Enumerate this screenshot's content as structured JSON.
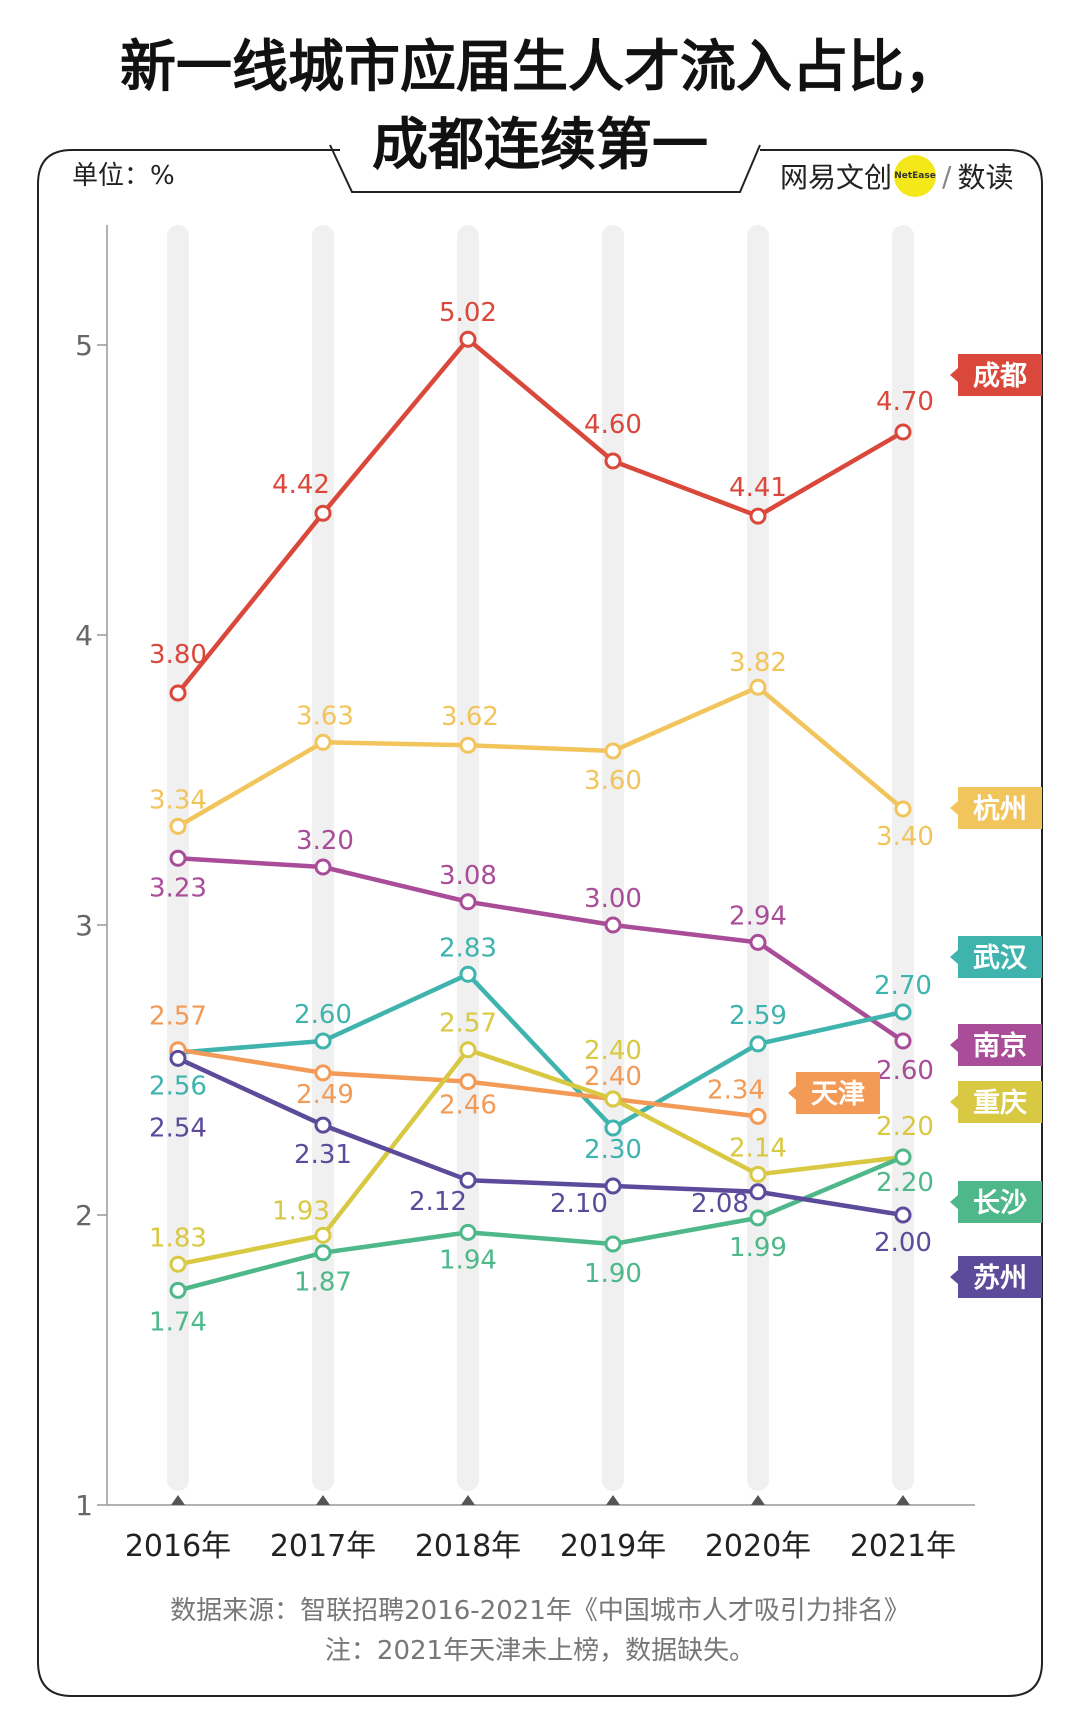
{
  "title": {
    "line1": "新一线城市应届生人才流入占比，",
    "line2": "成都连续第一"
  },
  "unit_label": "单位：%",
  "brand": {
    "name": "网易文创",
    "logo_text": "NetEase",
    "sub": "数读"
  },
  "footer": {
    "source": "数据来源：智联招聘2016-2021年《中国城市人才吸引力排名》",
    "note": "注：2021年天津未上榜，数据缺失。"
  },
  "colors": {
    "chengdu": "#d9483b",
    "hangzhou": "#f2c55c",
    "nanjing": "#a94d98",
    "wuhan": "#3fb3ad",
    "tianjin": "#f29a56",
    "chongqing": "#d9c842",
    "changsha": "#4fb88a",
    "suzhou": "#5c4b9b"
  },
  "chart_data": {
    "type": "line",
    "title": "新一线城市应届生人才流入占比，成都连续第一",
    "ylabel": "单位：%",
    "categories": [
      "2016年",
      "2017年",
      "2018年",
      "2019年",
      "2020年",
      "2021年"
    ],
    "yticks": [
      1,
      2,
      3,
      4,
      5
    ],
    "ylim": [
      1,
      5.4
    ],
    "series": [
      {
        "key": "chengdu",
        "name": "成都",
        "values": [
          3.8,
          4.42,
          5.02,
          4.6,
          4.41,
          4.7
        ],
        "labels": [
          "3.80",
          "4.42",
          "5.02",
          "4.60",
          "4.41",
          "4.70"
        ]
      },
      {
        "key": "hangzhou",
        "name": "杭州",
        "values": [
          3.34,
          3.63,
          3.62,
          3.6,
          3.82,
          3.4
        ],
        "labels": [
          "3.34",
          "3.63",
          "3.62",
          "3.60",
          "3.82",
          "3.40"
        ]
      },
      {
        "key": "nanjing",
        "name": "南京",
        "values": [
          3.23,
          3.2,
          3.08,
          3.0,
          2.94,
          2.6
        ],
        "labels": [
          "3.23",
          "3.20",
          "3.08",
          "3.00",
          "2.94",
          "2.60"
        ]
      },
      {
        "key": "wuhan",
        "name": "武汉",
        "values": [
          2.56,
          2.6,
          2.83,
          2.3,
          2.59,
          2.7
        ],
        "labels": [
          "2.56",
          "2.60",
          "2.83",
          "2.30",
          "2.59",
          "2.70"
        ]
      },
      {
        "key": "tianjin",
        "name": "天津",
        "values": [
          2.57,
          2.49,
          2.46,
          2.4,
          2.34,
          null
        ],
        "labels": [
          "2.57",
          "2.49",
          "2.46",
          "2.40",
          "2.34",
          null
        ]
      },
      {
        "key": "chongqing",
        "name": "重庆",
        "values": [
          1.83,
          1.93,
          2.57,
          2.4,
          2.14,
          2.2
        ],
        "labels": [
          "1.83",
          "1.93",
          "2.57",
          "2.40",
          "2.14",
          "2.20"
        ]
      },
      {
        "key": "changsha",
        "name": "长沙",
        "values": [
          1.74,
          1.87,
          1.94,
          1.9,
          1.99,
          2.2
        ],
        "labels": [
          "1.74",
          "1.87",
          "1.94",
          "1.90",
          "1.99",
          "2.20"
        ]
      },
      {
        "key": "suzhou",
        "name": "苏州",
        "values": [
          2.54,
          2.31,
          2.12,
          2.1,
          2.08,
          2.0
        ],
        "labels": [
          "2.54",
          "2.31",
          "2.12",
          "2.10",
          "2.08",
          "2.00"
        ]
      }
    ]
  }
}
